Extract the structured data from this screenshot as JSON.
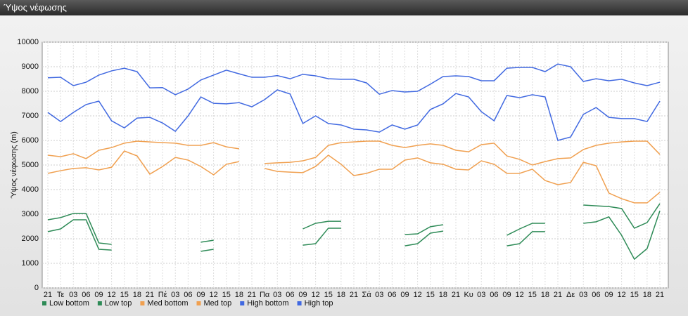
{
  "chart_data": {
    "type": "line",
    "title": "Ύψος νέφωσης",
    "y_label": "Ύψος νέφωσης (m)",
    "categories": [
      "21",
      "Τε",
      "03",
      "06",
      "09",
      "12",
      "15",
      "18",
      "21",
      "Πέ",
      "03",
      "06",
      "09",
      "12",
      "15",
      "18",
      "21",
      "Πα",
      "03",
      "06",
      "09",
      "12",
      "15",
      "18",
      "21",
      "Σά",
      "03",
      "06",
      "09",
      "12",
      "15",
      "18",
      "21",
      "Κυ",
      "03",
      "06",
      "09",
      "12",
      "15",
      "18",
      "21",
      "Δε",
      "03",
      "06",
      "09",
      "12",
      "15",
      "18",
      "21"
    ],
    "series": [
      {
        "name": "Low bottom",
        "color": "#2e8b57",
        "values": [
          2290,
          2400,
          2770,
          2770,
          1570,
          1540,
          null,
          null,
          null,
          null,
          null,
          null,
          1490,
          1570,
          null,
          null,
          null,
          null,
          null,
          null,
          1740,
          1800,
          2430,
          2430,
          null,
          null,
          null,
          null,
          1710,
          1800,
          2230,
          2310,
          null,
          null,
          null,
          null,
          1710,
          1800,
          2290,
          2290,
          null,
          null,
          2630,
          2690,
          2890,
          2140,
          1170,
          1600,
          3140
        ]
      },
      {
        "name": "Low top",
        "color": "#2e8b57",
        "values": [
          2770,
          2860,
          3030,
          3030,
          1830,
          1770,
          null,
          null,
          null,
          null,
          null,
          null,
          1860,
          1940,
          null,
          null,
          null,
          null,
          null,
          null,
          2400,
          2630,
          2710,
          2710,
          null,
          null,
          null,
          null,
          2170,
          2200,
          2490,
          2570,
          null,
          null,
          null,
          null,
          2140,
          2400,
          2630,
          2630,
          null,
          null,
          3370,
          3340,
          3310,
          3230,
          2430,
          2660,
          3430
        ]
      },
      {
        "name": "Med bottom",
        "color": "#f0a050",
        "values": [
          4660,
          4770,
          4860,
          4890,
          4800,
          4910,
          5570,
          5370,
          4630,
          4940,
          5310,
          5200,
          4940,
          4600,
          5030,
          5140,
          null,
          4860,
          4740,
          4710,
          4690,
          4940,
          5400,
          5030,
          4570,
          4660,
          4830,
          4830,
          5200,
          5290,
          5090,
          5030,
          4830,
          4800,
          5170,
          5030,
          4660,
          4660,
          4830,
          4370,
          4200,
          4290,
          5110,
          4970,
          3860,
          3630,
          3460,
          3460,
          3890
        ]
      },
      {
        "name": "Med top",
        "color": "#f0a050",
        "values": [
          5400,
          5340,
          5460,
          5260,
          5600,
          5710,
          5890,
          5970,
          5940,
          5910,
          5890,
          5800,
          5800,
          5910,
          5740,
          5660,
          null,
          5060,
          5090,
          5110,
          5170,
          5310,
          5800,
          5910,
          5940,
          5970,
          5970,
          5800,
          5710,
          5800,
          5860,
          5800,
          5600,
          5540,
          5830,
          5890,
          5370,
          5230,
          5000,
          5140,
          5260,
          5290,
          5630,
          5800,
          5890,
          5940,
          5970,
          5970,
          5430
        ]
      },
      {
        "name": "High bottom",
        "color": "#4169e1",
        "values": [
          7140,
          6770,
          7140,
          7460,
          7600,
          6800,
          6510,
          6910,
          6940,
          6710,
          6370,
          7000,
          7770,
          7510,
          7490,
          7540,
          7370,
          7660,
          8060,
          7890,
          6690,
          7000,
          6690,
          6630,
          6460,
          6430,
          6340,
          6630,
          6460,
          6630,
          7260,
          7490,
          7910,
          7770,
          7170,
          6800,
          7830,
          7740,
          7860,
          7770,
          6000,
          6140,
          7060,
          7340,
          6940,
          6890,
          6890,
          6770,
          7600
        ]
      },
      {
        "name": "High top",
        "color": "#4169e1",
        "values": [
          8550,
          8570,
          8230,
          8370,
          8660,
          8830,
          8940,
          8800,
          8140,
          8150,
          7860,
          8090,
          8460,
          8660,
          8860,
          8710,
          8570,
          8570,
          8640,
          8510,
          8690,
          8630,
          8510,
          8490,
          8490,
          8340,
          7880,
          8030,
          7970,
          8000,
          8290,
          8600,
          8630,
          8600,
          8430,
          8430,
          8940,
          8970,
          8970,
          8800,
          9110,
          9000,
          8400,
          8510,
          8430,
          8490,
          8340,
          8230,
          8370
        ]
      }
    ],
    "ylim": [
      0,
      10000
    ],
    "yticks": [
      0,
      1000,
      2000,
      3000,
      4000,
      5000,
      6000,
      7000,
      8000,
      9000,
      10000
    ],
    "grid": true
  }
}
